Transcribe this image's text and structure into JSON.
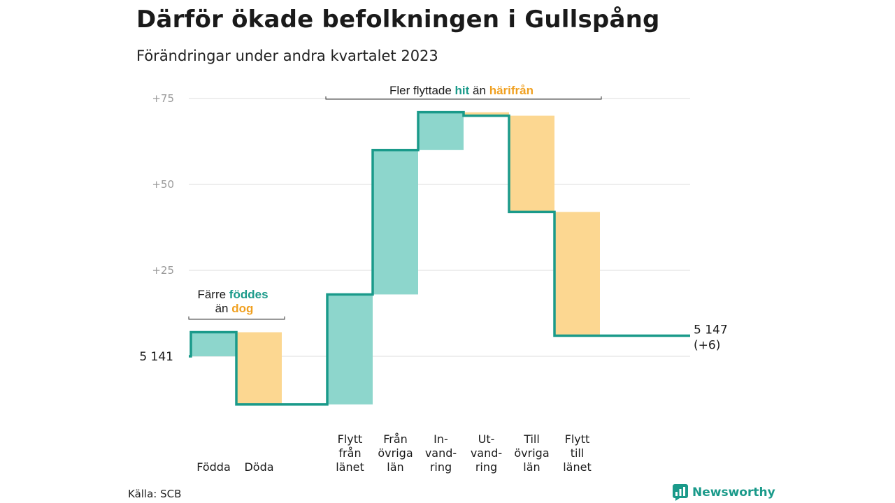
{
  "title": "Därför ökade befolkningen i Gullspång",
  "subtitle": "Förändringar under andra kvartalet 2023",
  "source": "Källa: SCB",
  "brand": "Newsworthy",
  "colors": {
    "increase": "#8dd6cc",
    "decrease": "#fcd791",
    "line": "#1a9a8a",
    "teal_text": "#1a9a8a",
    "orange_text": "#f0a020",
    "grid": "#dddddd"
  },
  "chart_data": {
    "type": "waterfall",
    "start_value": 5141,
    "start_label": "5  141",
    "end_label_value": "5 147",
    "end_label_change": "(+6)",
    "y_ticks": [
      "+75",
      "+50",
      "+25"
    ],
    "y_tick_values": [
      75,
      50,
      25
    ],
    "ylim": [
      -14,
      80
    ],
    "steps": [
      {
        "label_lines": [
          "Födda"
        ],
        "change": 7,
        "kind": "increase"
      },
      {
        "label_lines": [
          "Döda"
        ],
        "change": -21,
        "kind": "decrease"
      },
      {
        "label_lines": [
          ""
        ],
        "change": 0,
        "kind": "gap"
      },
      {
        "label_lines": [
          "Flytt",
          "från",
          "länet"
        ],
        "change": 32,
        "kind": "increase"
      },
      {
        "label_lines": [
          "Från",
          "övriga",
          "län"
        ],
        "change": 42,
        "kind": "increase"
      },
      {
        "label_lines": [
          "In-",
          "vand-",
          "ring"
        ],
        "change": 11,
        "kind": "increase"
      },
      {
        "label_lines": [
          "Ut-",
          "vand-",
          "ring"
        ],
        "change": -1,
        "kind": "decrease"
      },
      {
        "label_lines": [
          "Till",
          "övriga",
          "län"
        ],
        "change": -28,
        "kind": "decrease"
      },
      {
        "label_lines": [
          "Flytt",
          "till",
          "länet"
        ],
        "change": -36,
        "kind": "decrease"
      }
    ],
    "annotations": [
      {
        "parts": [
          {
            "text": "Färre ",
            "style": "plain"
          },
          {
            "text": "föddes",
            "style": "teal"
          }
        ],
        "parts2": [
          {
            "text": "än ",
            "style": "plain"
          },
          {
            "text": "dog",
            "style": "orange"
          }
        ]
      },
      {
        "parts": [
          {
            "text": "Fler flyttade ",
            "style": "plain"
          },
          {
            "text": "hit",
            "style": "teal"
          },
          {
            "text": " än ",
            "style": "plain"
          },
          {
            "text": "härifrån",
            "style": "orange"
          }
        ]
      }
    ]
  }
}
